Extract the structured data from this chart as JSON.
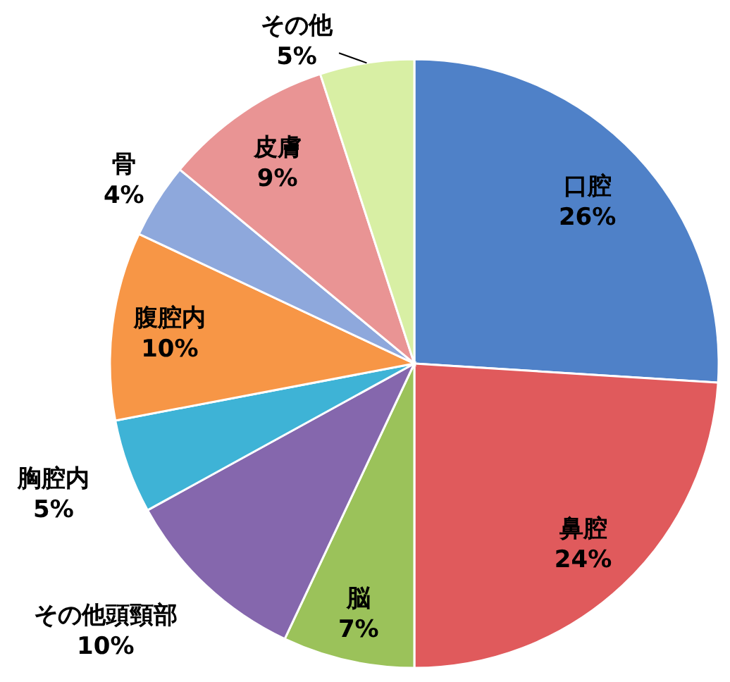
{
  "chart_data": {
    "type": "pie",
    "categories": [
      "口腔",
      "鼻腔",
      "脳",
      "その他頭頸部",
      "胸腔内",
      "腹腔内",
      "骨",
      "皮膚",
      "その他"
    ],
    "values": [
      26,
      24,
      7,
      10,
      5,
      10,
      4,
      9,
      5
    ],
    "value_labels": [
      "26%",
      "24%",
      "7%",
      "10%",
      "5%",
      "10%",
      "4%",
      "9%",
      "5%"
    ],
    "colors": [
      "#4f81c8",
      "#e05a5c",
      "#9bc25a",
      "#8567ad",
      "#3eb3d6",
      "#f79646",
      "#8ea8dc",
      "#e99494",
      "#d8efa4"
    ]
  }
}
